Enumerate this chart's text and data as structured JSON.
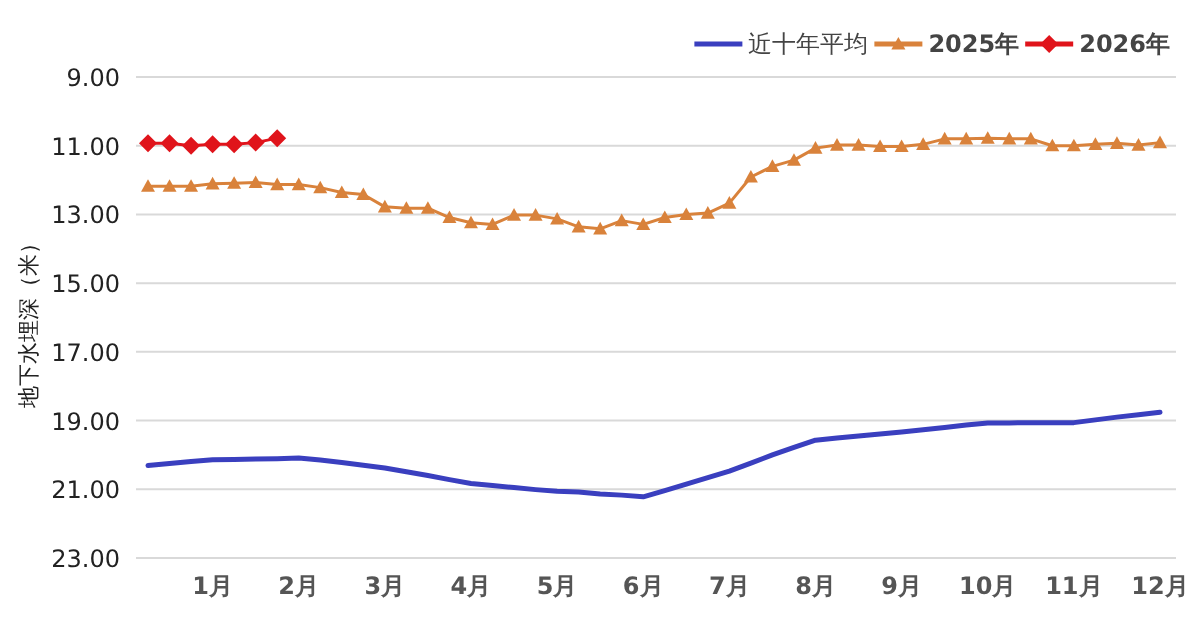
{
  "chart_data": {
    "type": "line",
    "ylabel": "地下水埋深（米）",
    "categories": [
      null,
      null,
      null,
      "1月",
      null,
      null,
      null,
      "2月",
      null,
      null,
      null,
      "3月",
      null,
      null,
      null,
      "4月",
      null,
      null,
      null,
      "5月",
      null,
      null,
      null,
      "6月",
      null,
      null,
      null,
      "7月",
      null,
      null,
      null,
      "8月",
      null,
      null,
      null,
      "9月",
      null,
      null,
      null,
      "10月",
      null,
      null,
      null,
      "11月",
      null,
      null,
      null,
      "12月"
    ],
    "series": [
      {
        "name": "近十年平均",
        "color": "#3a3fbf",
        "marker": "none",
        "values": [
          20.31,
          20.25,
          20.19,
          20.14,
          20.13,
          20.12,
          20.11,
          20.09,
          20.15,
          20.22,
          20.3,
          20.38,
          20.49,
          20.6,
          20.72,
          20.83,
          20.89,
          20.95,
          21.01,
          21.06,
          21.08,
          21.14,
          21.17,
          21.22,
          21.04,
          20.85,
          20.66,
          20.47,
          20.24,
          20.0,
          19.78,
          19.57,
          19.51,
          19.45,
          19.39,
          19.33,
          19.27,
          19.2,
          19.13,
          19.07,
          19.07,
          19.06,
          19.06,
          19.06,
          18.98,
          18.9,
          18.83,
          18.76
        ]
      },
      {
        "name": "2025年",
        "color": "#d9823b",
        "marker": "triangle",
        "values": [
          12.18,
          12.18,
          12.18,
          12.11,
          12.09,
          12.07,
          12.13,
          12.13,
          12.22,
          12.36,
          12.42,
          12.78,
          12.82,
          12.82,
          13.09,
          13.24,
          13.29,
          13.02,
          13.02,
          13.13,
          13.36,
          13.42,
          13.18,
          13.29,
          13.09,
          13.0,
          12.96,
          12.67,
          11.91,
          11.6,
          11.42,
          11.07,
          10.98,
          10.98,
          11.02,
          11.02,
          10.96,
          10.8,
          10.8,
          10.78,
          10.8,
          10.8,
          11.0,
          11.0,
          10.96,
          10.93,
          10.98,
          10.91
        ]
      },
      {
        "name": "2026年",
        "color": "#e0141b",
        "marker": "diamond",
        "values": [
          10.93,
          10.93,
          11.0,
          10.96,
          10.96,
          10.91,
          10.78,
          null,
          null,
          null,
          null,
          null,
          null,
          null,
          null,
          null,
          null,
          null,
          null,
          null,
          null,
          null,
          null,
          null,
          null,
          null,
          null,
          null,
          null,
          null,
          null,
          null,
          null,
          null,
          null,
          null,
          null,
          null,
          null,
          null,
          null,
          null,
          null,
          null,
          null,
          null,
          null,
          null
        ]
      }
    ],
    "ylim": [
      23,
      9
    ],
    "yticks": [
      {
        "value": 9,
        "label": "9.00"
      },
      {
        "value": 11,
        "label": "11.00"
      },
      {
        "value": 13,
        "label": "13.00"
      },
      {
        "value": 15,
        "label": "15.00"
      },
      {
        "value": 17,
        "label": "17.00"
      },
      {
        "value": 19,
        "label": "19.00"
      },
      {
        "value": 21,
        "label": "21.00"
      },
      {
        "value": 23,
        "label": "23.00"
      }
    ],
    "grid": "y",
    "legend": "top right"
  }
}
